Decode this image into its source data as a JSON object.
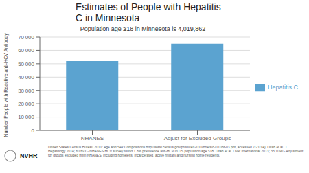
{
  "chart_data": {
    "type": "bar",
    "title": "Estimates of People with Hepatitis\nC in Minnesota",
    "subtitle": "Population age ≥18 in Minnesota is 4,019,862",
    "categories": [
      "NHANES",
      "Adjust for Excluded Groups"
    ],
    "series": [
      {
        "name": "Hepatitis C",
        "color": "#5BA3D0",
        "values": [
          52000,
          65000
        ]
      }
    ],
    "ylabel": "Number People with Reactive anti-HCV Antibody",
    "ylim": [
      0,
      70000
    ],
    "yticks": [
      0,
      {
        "value": 10000,
        "label": "10 000"
      },
      {
        "value": 20000,
        "label": "20 000"
      },
      {
        "value": 30000,
        "label": "30 000"
      },
      {
        "value": 40000,
        "label": "40 000"
      },
      {
        "value": 50000,
        "label": "50 000"
      },
      {
        "value": 60000,
        "label": "60 000"
      },
      {
        "value": 70000,
        "label": "70 000"
      }
    ],
    "grid": true,
    "legend": "right",
    "annotations": [
      "United States Census Bureau 2010: Age and Sex Compositions http://www.census.gov/prod/cen2010/briefs/c2010br-03.pdf, accessed 7/21/14). Ditah et al. J",
      "Hepatology 2014; 60:691 - NHANES HCV survey found 1.3% prevalence anti-HCV in US population age >18. Ditah et al. Liver International 2013; 33:1090 - Adjustment",
      "for groups excluded from NHANES, including homeless, incarcerated, active military and nursing home residents.",
      "NVHR"
    ]
  }
}
